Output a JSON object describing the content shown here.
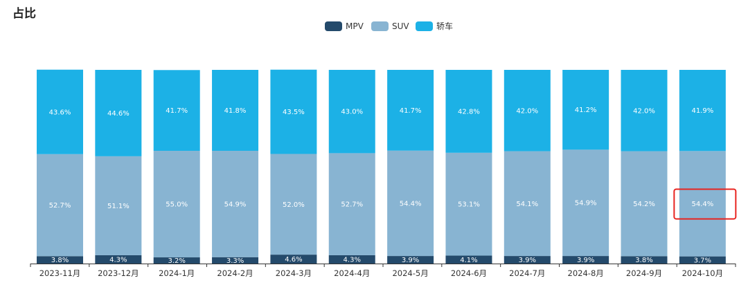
{
  "colors": {
    "mpv": "#244a6b",
    "suv": "#88b4d2",
    "sedan": "#1cb1e6",
    "highlight": "#e8231f",
    "axis": "#333333"
  },
  "chart_data": {
    "type": "bar",
    "stacked": true,
    "title": "占比",
    "xlabel": "",
    "ylabel": "",
    "ylim": [
      0,
      100
    ],
    "grid": false,
    "legend_position": "top-center",
    "categories": [
      "2023-11月",
      "2023-12月",
      "2024-1月",
      "2024-2月",
      "2024-3月",
      "2024-4月",
      "2024-5月",
      "2024-6月",
      "2024-7月",
      "2024-8月",
      "2024-9月",
      "2024-10月"
    ],
    "series": [
      {
        "name": "MPV",
        "values": [
          3.8,
          4.3,
          3.2,
          3.3,
          4.6,
          4.3,
          3.9,
          4.1,
          3.9,
          3.9,
          3.8,
          3.7
        ],
        "labels": [
          "3.8%",
          "4.3%",
          "3.2%",
          "3.3%",
          "4.6%",
          "4.3%",
          "3.9%",
          "4.1%",
          "3.9%",
          "3.9%",
          "3.8%",
          "3.7%"
        ]
      },
      {
        "name": "SUV",
        "values": [
          52.7,
          51.1,
          55.0,
          54.9,
          52.0,
          52.7,
          54.4,
          53.1,
          54.1,
          54.9,
          54.2,
          54.4
        ],
        "labels": [
          "52.7%",
          "51.1%",
          "55.0%",
          "54.9%",
          "52.0%",
          "52.7%",
          "54.4%",
          "53.1%",
          "54.1%",
          "54.9%",
          "54.2%",
          "54.4%"
        ]
      },
      {
        "name": "轿车",
        "values": [
          43.6,
          44.6,
          41.7,
          41.8,
          43.5,
          43.0,
          41.7,
          42.8,
          42.0,
          41.2,
          42.0,
          41.9
        ],
        "labels": [
          "43.6%",
          "44.6%",
          "41.7%",
          "41.8%",
          "43.5%",
          "43.0%",
          "41.7%",
          "42.8%",
          "42.0%",
          "41.2%",
          "42.0%",
          "41.9%"
        ]
      }
    ],
    "annotations": [
      {
        "type": "highlight-box",
        "category": "2024-10月",
        "series": "SUV"
      }
    ]
  }
}
